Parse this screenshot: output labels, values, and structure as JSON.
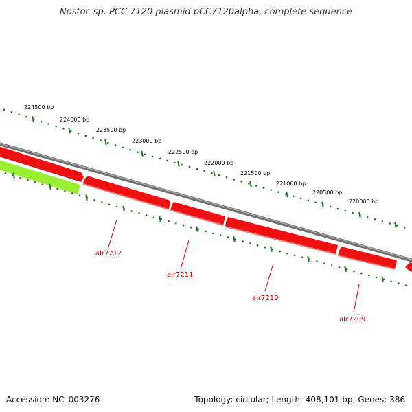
{
  "title": "Nostoc sp. PCC 7120 plasmid pCC7120alpha, complete sequence",
  "footer": {
    "accession": "Accession: NC_003276",
    "summary": "Topology: circular; Length: 408,101 bp; Genes: 386"
  },
  "colors": {
    "backbone": "#8a8a8a",
    "gene_forward": "#ee1111",
    "gene_highlight": "#99ee33",
    "ticks": "#117711",
    "gene_label": "#cc0000"
  },
  "ruler_ticks": [
    "224500 bp",
    "224000 bp",
    "223500 bp",
    "223000 bp",
    "222500 bp",
    "222000 bp",
    "221500 bp",
    "221000 bp",
    "220500 bp",
    "220000 bp"
  ],
  "genes": [
    {
      "label": "alr7212"
    },
    {
      "label": "alr7211"
    },
    {
      "label": "alr7210"
    },
    {
      "label": "alr7209"
    }
  ]
}
